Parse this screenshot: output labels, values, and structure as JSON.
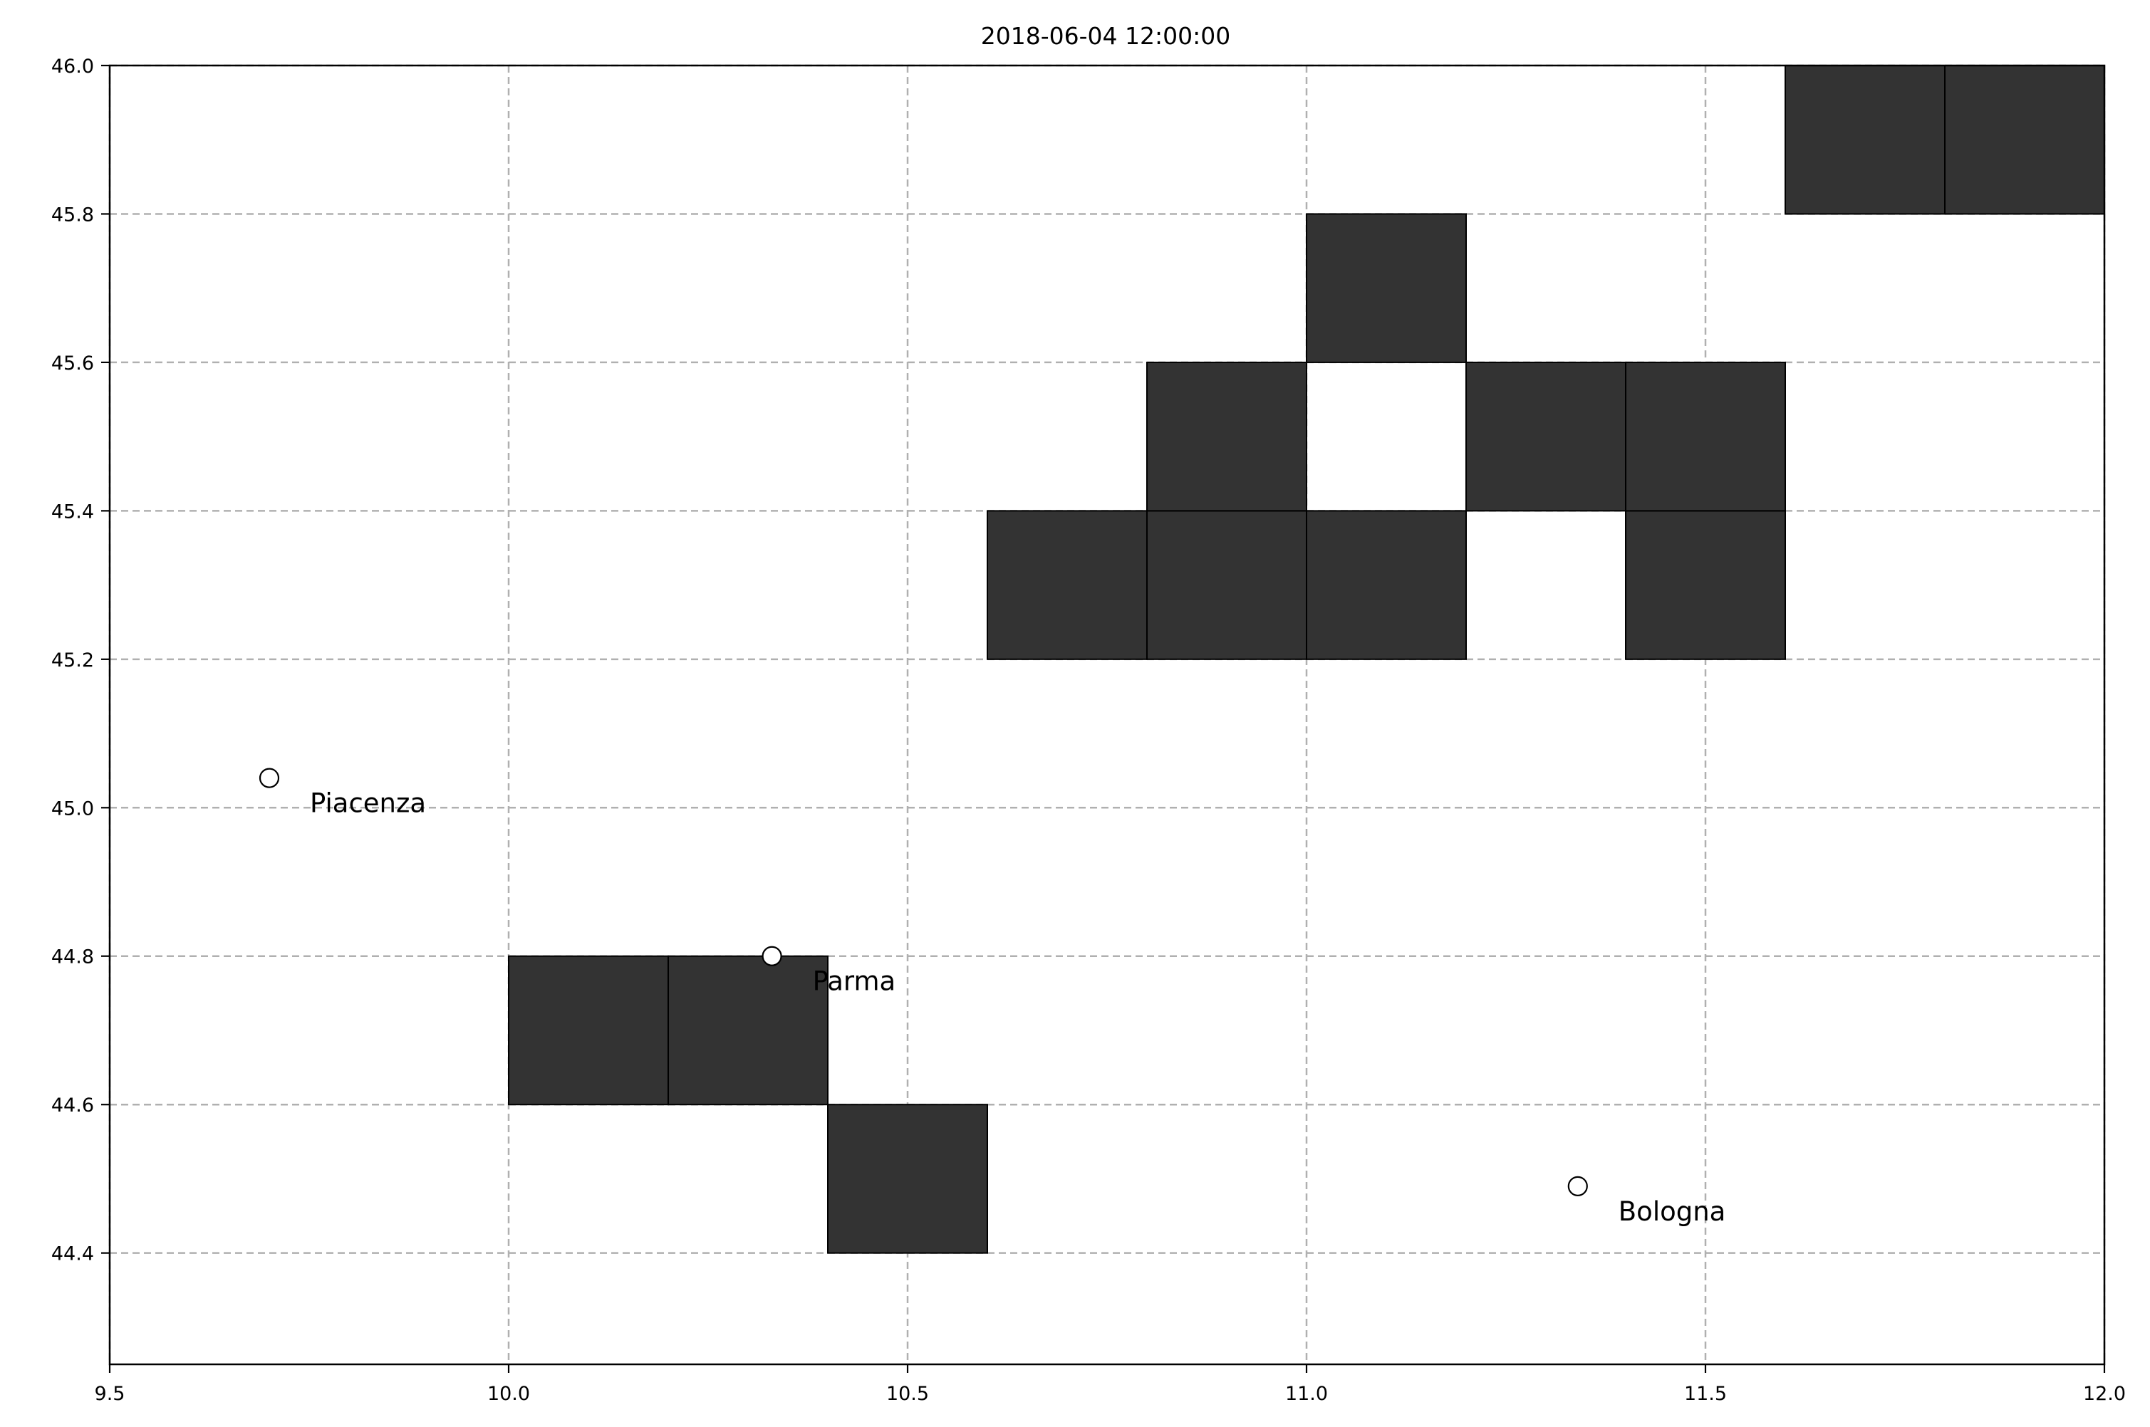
{
  "chart_data": {
    "type": "heatmap",
    "title": "2018-06-04 12:00:00",
    "xlabel": "",
    "ylabel": "",
    "xlim": [
      9.5,
      12.0
    ],
    "ylim": [
      44.25,
      46.0
    ],
    "x_ticks": [
      9.5,
      10.0,
      10.5,
      11.0,
      11.5,
      12.0
    ],
    "x_tick_labels": [
      "9.5",
      "10.0",
      "10.5",
      "11.0",
      "11.5",
      "12.0"
    ],
    "y_ticks": [
      44.4,
      44.6,
      44.8,
      45.0,
      45.2,
      45.4,
      45.6,
      45.8,
      46.0
    ],
    "y_tick_labels": [
      "44.4",
      "44.6",
      "44.8",
      "45.0",
      "45.2",
      "45.4",
      "45.6",
      "45.8",
      "46.0"
    ],
    "grid": true,
    "grid_style": "dashed",
    "cell_size": 0.2,
    "cell_color": "#333333",
    "cells": [
      {
        "x": 10.0,
        "y": 44.6
      },
      {
        "x": 10.2,
        "y": 44.6
      },
      {
        "x": 10.4,
        "y": 44.4
      },
      {
        "x": 10.6,
        "y": 45.2
      },
      {
        "x": 10.8,
        "y": 45.2
      },
      {
        "x": 11.0,
        "y": 45.2
      },
      {
        "x": 11.4,
        "y": 45.2
      },
      {
        "x": 10.8,
        "y": 45.4
      },
      {
        "x": 11.2,
        "y": 45.4
      },
      {
        "x": 11.4,
        "y": 45.4
      },
      {
        "x": 11.0,
        "y": 45.6
      },
      {
        "x": 11.6,
        "y": 45.8
      },
      {
        "x": 11.8,
        "y": 45.8
      }
    ],
    "cities": [
      {
        "name": "Piacenza",
        "x": 9.7,
        "y": 45.04
      },
      {
        "name": "Parma",
        "x": 10.33,
        "y": 44.8
      },
      {
        "name": "Bologna",
        "x": 11.34,
        "y": 44.49
      }
    ]
  }
}
